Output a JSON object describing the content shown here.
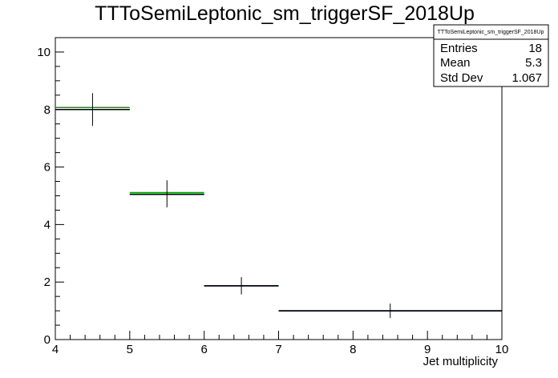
{
  "chart_data": {
    "type": "histogram",
    "title": "TTToSemiLeptonic_sm_triggerSF_2018Up",
    "xlabel": "Jet multiplicity",
    "ylabel": "",
    "xlim": [
      4,
      10
    ],
    "ylim": [
      0,
      10.5
    ],
    "x_ticks": [
      "4",
      "5",
      "6",
      "7",
      "8",
      "9",
      "10"
    ],
    "y_ticks": [
      "0",
      "2",
      "4",
      "6",
      "8",
      "10"
    ],
    "grid": false,
    "bins": [
      {
        "low": 4,
        "high": 5,
        "content": 8.0,
        "error": 0.57
      },
      {
        "low": 5,
        "high": 6,
        "content": 5.07,
        "error": 0.47
      },
      {
        "low": 6,
        "high": 7,
        "content": 1.87,
        "error": 0.3
      },
      {
        "low": 7,
        "high": 10,
        "content": 1.0,
        "error": 0.25
      }
    ],
    "series": [
      {
        "name": "",
        "color": "#00a000",
        "values": [
          8.07,
          5.11,
          1.87,
          1.0
        ]
      },
      {
        "name": "",
        "color": "#0000cc",
        "values": [
          8.0,
          5.05,
          1.87,
          1.0
        ]
      },
      {
        "name": "",
        "color": "#000000",
        "values": [
          8.0,
          5.05,
          1.87,
          1.0
        ]
      }
    ],
    "stats": {
      "title": "TTToSemiLeptonic_sm_triggerSF_2018Up",
      "rows": [
        {
          "label": "Entries",
          "value": "18"
        },
        {
          "label": "Mean",
          "value": "5.3"
        },
        {
          "label": "Std Dev",
          "value": "1.067"
        }
      ]
    }
  }
}
